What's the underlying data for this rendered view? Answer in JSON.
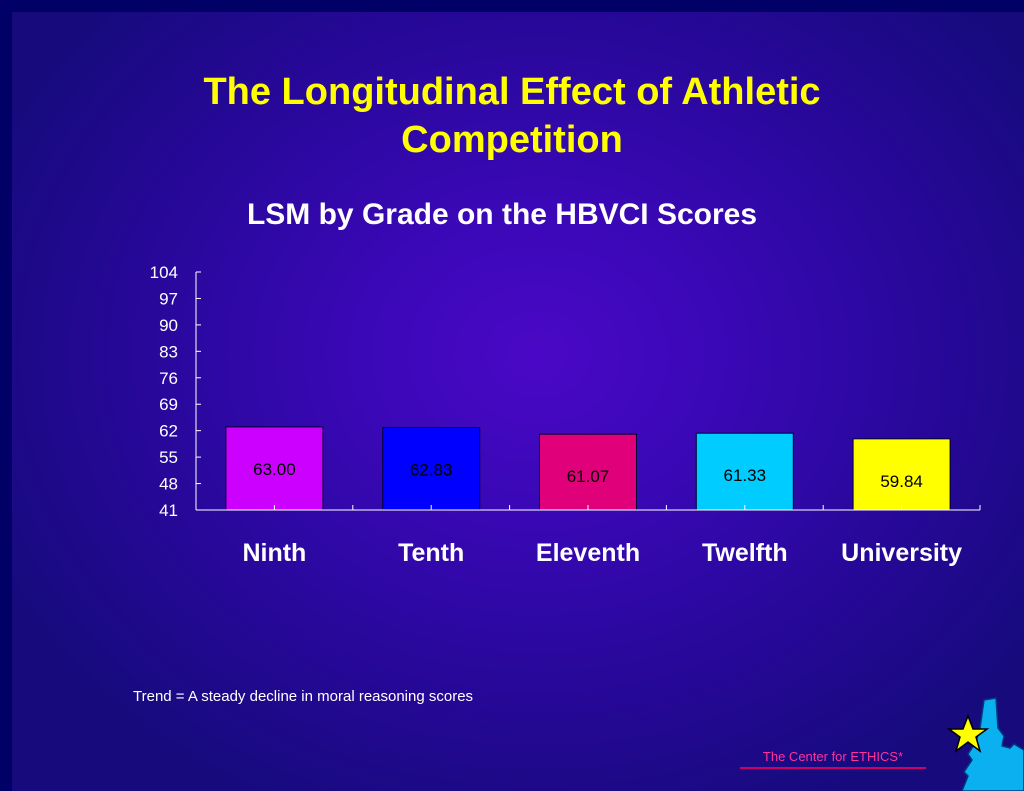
{
  "slide": {
    "title": "The Longitudinal Effect of Athletic Competition",
    "note": "Trend =  A steady decline in moral reasoning scores",
    "footer": "The Center for ETHICS*"
  },
  "chart_data": {
    "type": "bar",
    "title": "LSM by Grade on the HBVCI Scores",
    "categories": [
      "Ninth",
      "Tenth",
      "Eleventh",
      "Twelfth",
      "University"
    ],
    "values": [
      63.0,
      62.83,
      61.07,
      61.33,
      59.84
    ],
    "labels": [
      "63.00",
      "62.83",
      "61.07",
      "61.33",
      "59.84"
    ],
    "colors": [
      "#cc00ff",
      "#0000ff",
      "#e0007a",
      "#00ccff",
      "#ffff00"
    ],
    "yticks": [
      41,
      48,
      55,
      62,
      69,
      76,
      83,
      90,
      97,
      104
    ],
    "ylim": [
      41,
      104
    ],
    "xlabel": "",
    "ylabel": "",
    "grid": false,
    "legend": "none"
  },
  "theme": {
    "title_color": "#ffff00",
    "text_color": "#ffffff",
    "footer_color": "#ff3399"
  }
}
